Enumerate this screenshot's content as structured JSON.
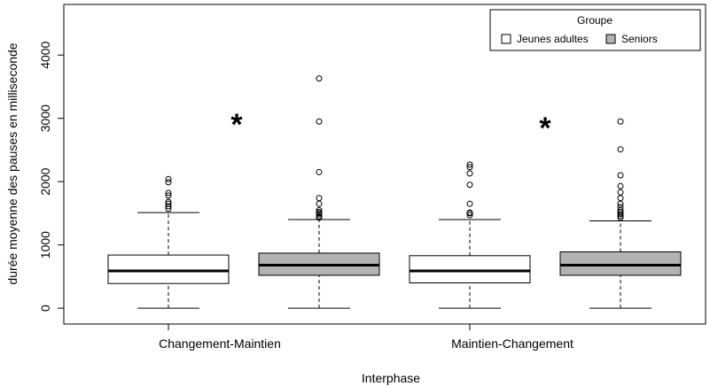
{
  "chart_data": {
    "type": "boxplot",
    "xlabel": "Interphase",
    "ylabel": "durée moyenne des pauses en milliseconde",
    "ylim": [
      -250,
      4800
    ],
    "yticks": [
      0,
      1000,
      2000,
      3000,
      4000
    ],
    "legend": {
      "title": "Groupe",
      "position": "top-right",
      "entries": [
        {
          "label": "Jeunes adultes",
          "color": "#ffffff"
        },
        {
          "label": "Seniors",
          "color": "#b3b3b3"
        }
      ]
    },
    "categories": [
      "Changement-Maintien",
      "Maintien-Changement"
    ],
    "significance_marker": "*",
    "significant_categories": [
      "Changement-Maintien",
      "Maintien-Changement"
    ],
    "series": [
      {
        "name": "Jeunes adultes",
        "color": "#ffffff",
        "boxes": [
          {
            "category": "Changement-Maintien",
            "min": 0,
            "q1": 390,
            "median": 590,
            "q3": 840,
            "max": 1510,
            "outliers": [
              1570,
              1610,
              1650,
              1680,
              1780,
              1820,
              1990,
              2040
            ]
          },
          {
            "category": "Maintien-Changement",
            "min": 0,
            "q1": 400,
            "median": 590,
            "q3": 830,
            "max": 1400,
            "outliers": [
              1470,
              1500,
              1510,
              1650,
              1950,
              2130,
              2230,
              2270
            ]
          }
        ]
      },
      {
        "name": "Seniors",
        "color": "#b3b3b3",
        "boxes": [
          {
            "category": "Changement-Maintien",
            "min": 0,
            "q1": 520,
            "median": 680,
            "q3": 870,
            "max": 1400,
            "outliers": [
              1430,
              1450,
              1480,
              1500,
              1520,
              1550,
              1650,
              1740,
              2150,
              2950,
              3630
            ]
          },
          {
            "category": "Maintien-Changement",
            "min": 0,
            "q1": 520,
            "median": 680,
            "q3": 890,
            "max": 1380,
            "outliers": [
              1430,
              1460,
              1490,
              1520,
              1550,
              1600,
              1650,
              1740,
              1830,
              1930,
              2100,
              2510,
              2950
            ]
          }
        ]
      }
    ]
  }
}
